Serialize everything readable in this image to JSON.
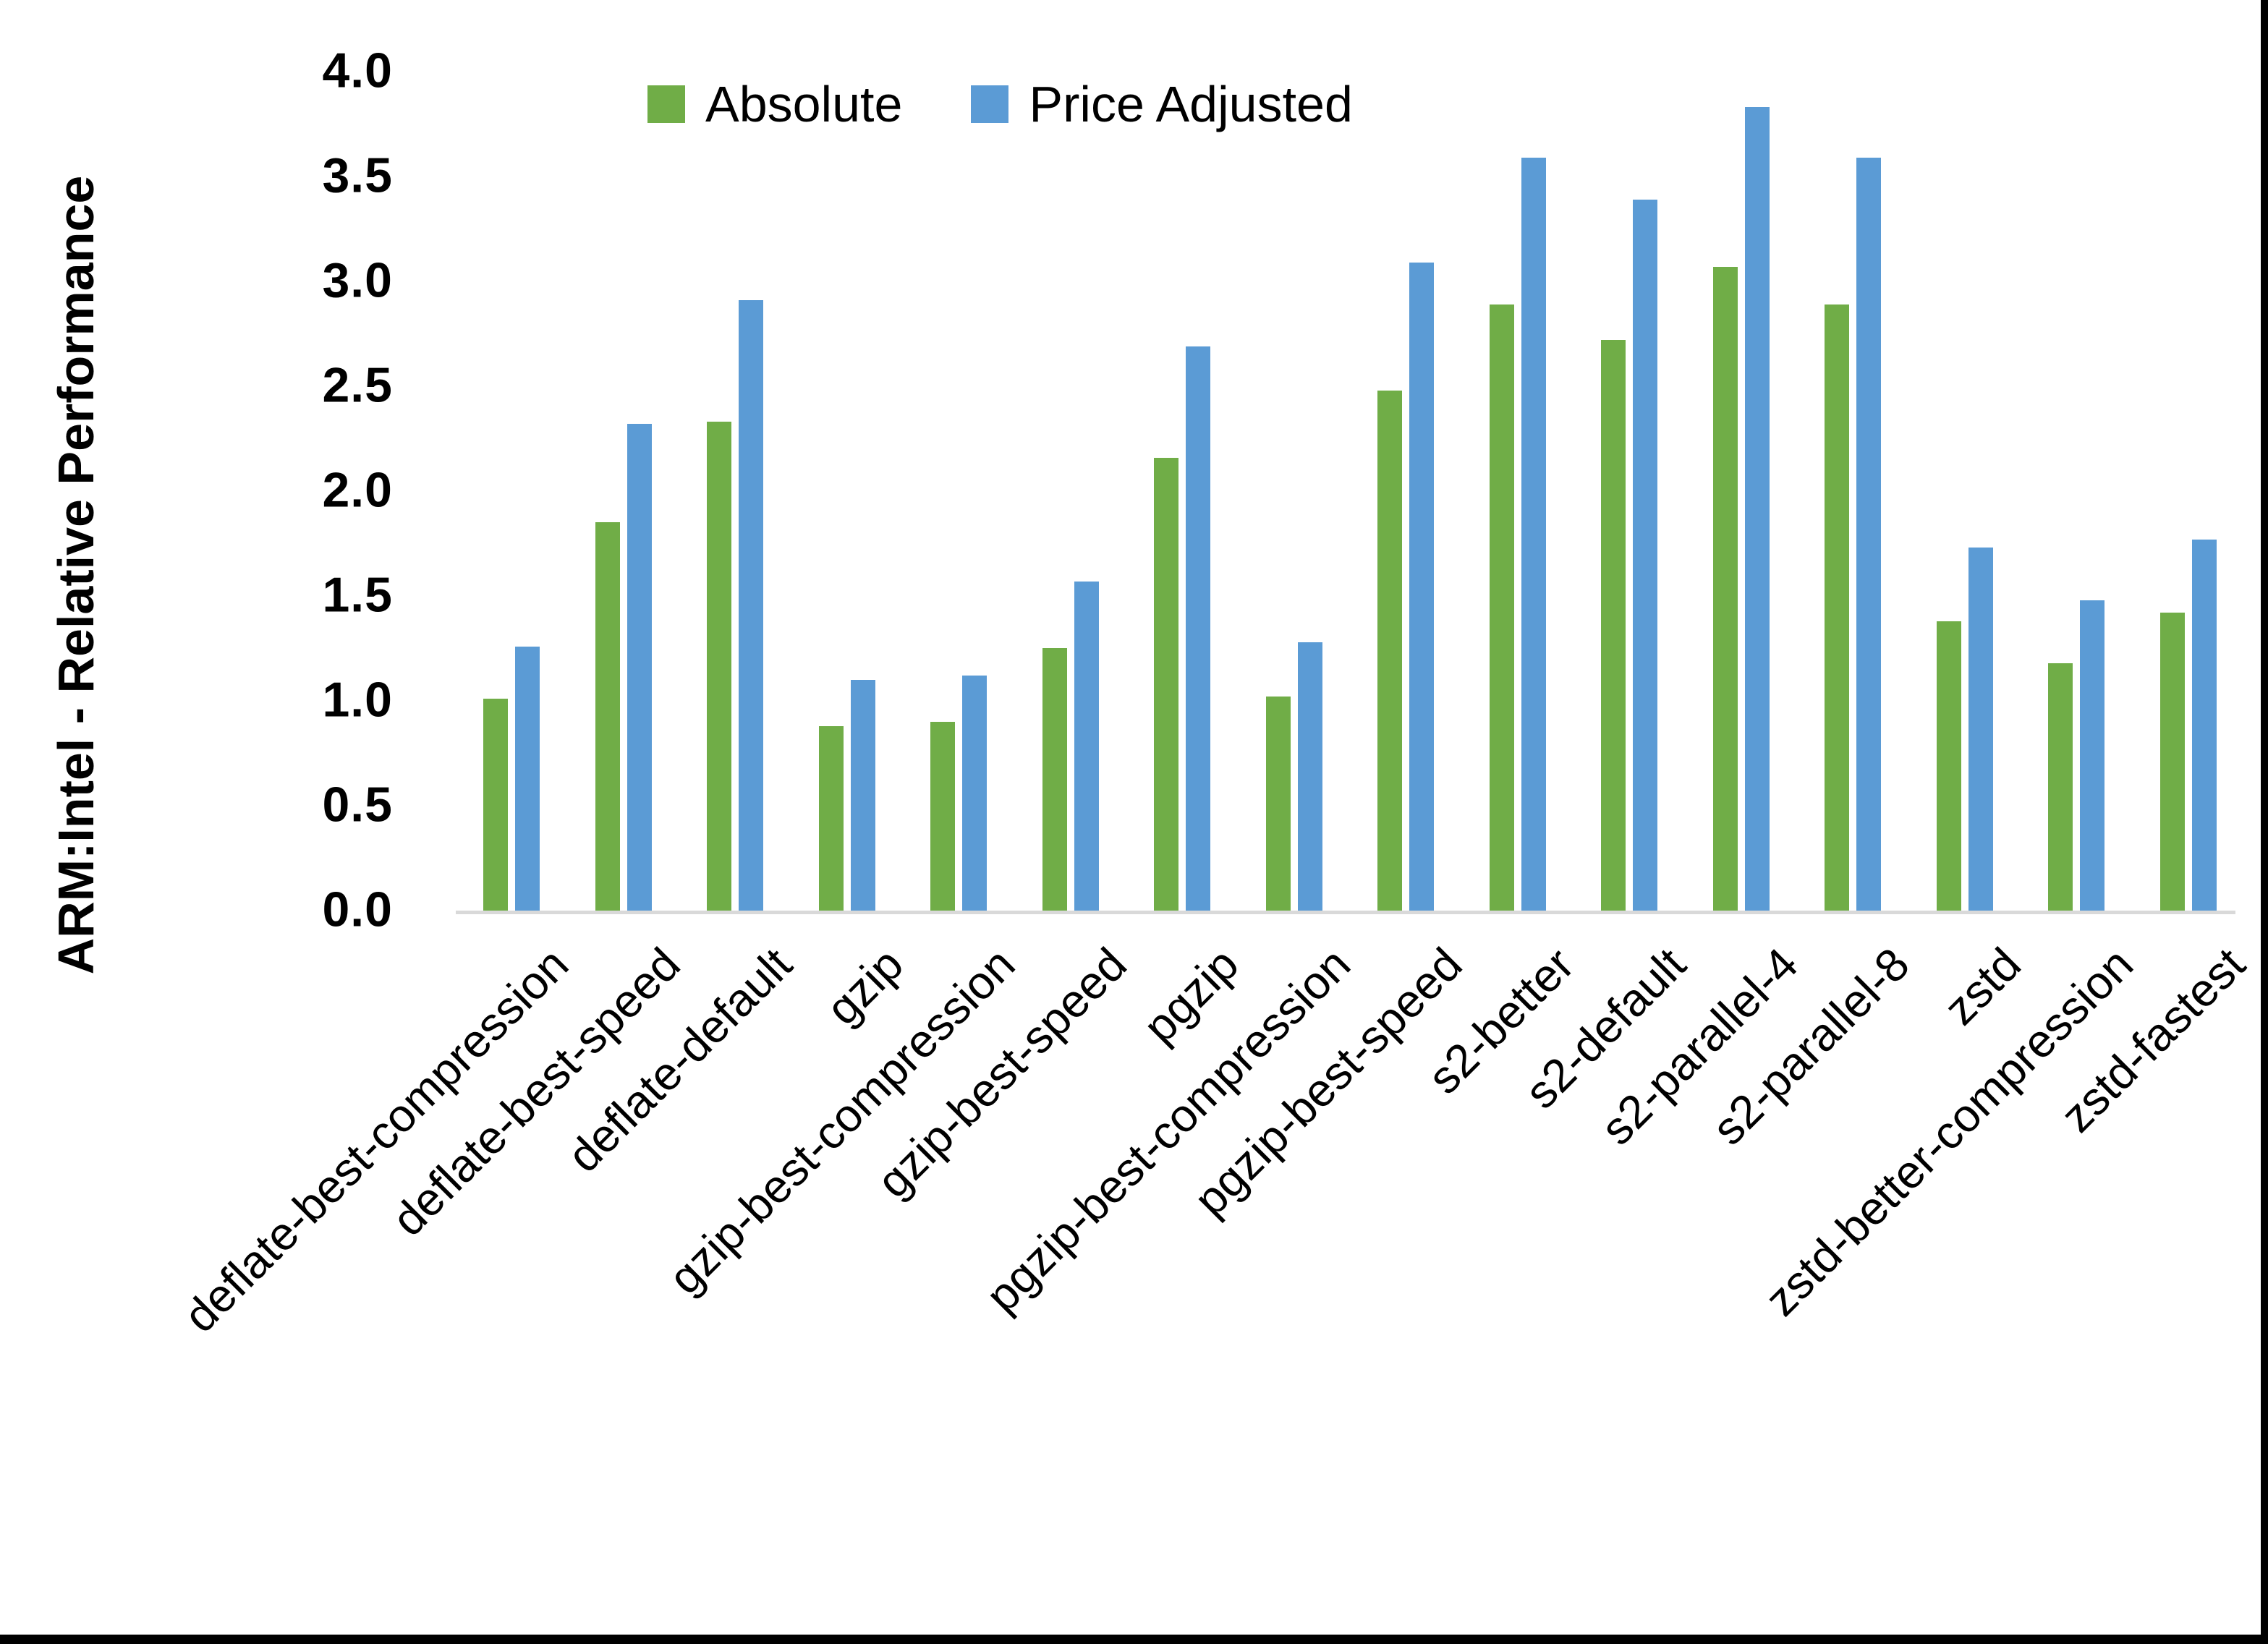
{
  "chart_data": {
    "type": "bar",
    "title": "",
    "ylabel": "ARM:Intel - Relative Performance",
    "xlabel": "",
    "ylim": [
      0.0,
      4.0
    ],
    "ytick_step": 0.5,
    "yticks": [
      "0.0",
      "0.5",
      "1.0",
      "1.5",
      "2.0",
      "2.5",
      "3.0",
      "3.5",
      "4.0"
    ],
    "grid": false,
    "legend_position": "top-center",
    "axis_line_color": "#d9d9d9",
    "categories": [
      "deflate-best-compression",
      "deflate-best-speed",
      "deflate-default",
      "gzip",
      "gzip-best-compression",
      "gzip-best-speed",
      "pgzip",
      "pgzip-best-compression",
      "pgzip-best-speed",
      "s2-better",
      "s2-default",
      "s2-parallel-4",
      "s2-parallel-8",
      "zstd",
      "zstd-better-compression",
      "zstd-fastest"
    ],
    "series": [
      {
        "name": "Absolute",
        "color": "#70ad47",
        "values": [
          1.01,
          1.85,
          2.33,
          0.88,
          0.9,
          1.25,
          2.16,
          1.02,
          2.48,
          2.89,
          2.72,
          3.07,
          2.89,
          1.38,
          1.18,
          1.42
        ]
      },
      {
        "name": "Price Adjusted",
        "color": "#5b9bd5",
        "values": [
          1.26,
          2.32,
          2.91,
          1.1,
          1.12,
          1.57,
          2.69,
          1.28,
          3.09,
          3.59,
          3.39,
          3.83,
          3.59,
          1.73,
          1.48,
          1.77
        ]
      }
    ]
  }
}
